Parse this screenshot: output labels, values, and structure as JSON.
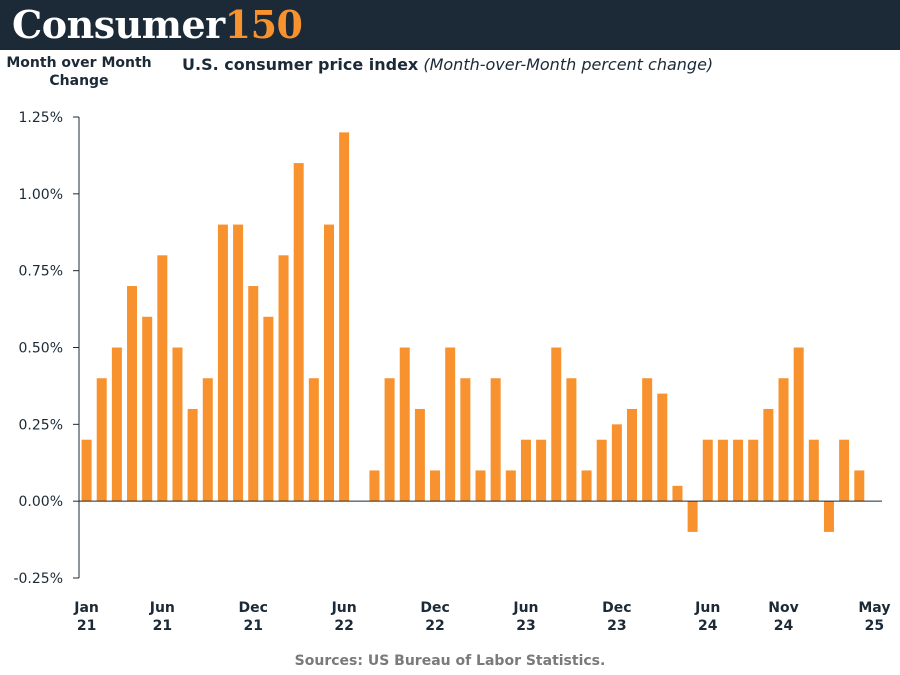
{
  "header": {
    "logo_word": "Consumer",
    "logo_number": "150",
    "background": "#1b2a36",
    "accent": "#f7922e"
  },
  "source": "Sources: US Bureau of Labor Statistics.",
  "chart_data": {
    "type": "bar",
    "title": "U.S. consumer price index",
    "subtitle": "(Month-over-Month percent change)",
    "ylabel": "Month over Month Change",
    "xlabel": "",
    "ylim": [
      -0.25,
      1.25
    ],
    "yticks": [
      1.25,
      1.0,
      0.75,
      0.5,
      0.25,
      0.0,
      -0.25
    ],
    "ytick_labels": [
      "1.25%",
      "1.00%",
      "0.75%",
      "0.50%",
      "0.25%",
      "0.00%",
      "-0.25%"
    ],
    "bar_color": "#f7922e",
    "grid": false,
    "categories": [
      "Jan 21",
      "Feb 21",
      "Mar 21",
      "Apr 21",
      "May 21",
      "Jun 21",
      "Jul 21",
      "Aug 21",
      "Sep 21",
      "Oct 21",
      "Nov 21",
      "Dec 21",
      "Jan 22",
      "Feb 22",
      "Mar 22",
      "Apr 22",
      "May 22",
      "Jun 22",
      "Jul 22",
      "Aug 22",
      "Sep 22",
      "Oct 22",
      "Nov 22",
      "Dec 22",
      "Jan 23",
      "Feb 23",
      "Mar 23",
      "Apr 23",
      "May 23",
      "Jun 23",
      "Jul 23",
      "Aug 23",
      "Sep 23",
      "Oct 23",
      "Nov 23",
      "Dec 23",
      "Jan 24",
      "Feb 24",
      "Mar 24",
      "Apr 24",
      "May 24",
      "Jun 24",
      "Jul 24",
      "Aug 24",
      "Sep 24",
      "Oct 24",
      "Nov 24",
      "Dec 24",
      "Jan 25",
      "Feb 25",
      "Mar 25",
      "Apr 25",
      "May 25"
    ],
    "values": [
      0.2,
      0.4,
      0.5,
      0.7,
      0.6,
      0.8,
      0.5,
      0.3,
      0.4,
      0.9,
      0.9,
      0.7,
      0.6,
      0.8,
      1.1,
      0.4,
      0.9,
      1.2,
      0.0,
      0.1,
      0.4,
      0.5,
      0.3,
      0.1,
      0.5,
      0.4,
      0.1,
      0.4,
      0.1,
      0.2,
      0.2,
      0.5,
      0.4,
      0.1,
      0.2,
      0.25,
      0.3,
      0.4,
      0.35,
      0.05,
      -0.1,
      0.2,
      0.2,
      0.2,
      0.2,
      0.3,
      0.4,
      0.5,
      0.2,
      -0.1,
      0.2,
      0.1,
      0.0
    ],
    "xtick_labels": [
      {
        "index": 0,
        "line1": "Jan",
        "line2": "21"
      },
      {
        "index": 5,
        "line1": "Jun",
        "line2": "21"
      },
      {
        "index": 11,
        "line1": "Dec",
        "line2": "21"
      },
      {
        "index": 17,
        "line1": "Jun",
        "line2": "22"
      },
      {
        "index": 23,
        "line1": "Dec",
        "line2": "22"
      },
      {
        "index": 29,
        "line1": "Jun",
        "line2": "23"
      },
      {
        "index": 35,
        "line1": "Dec",
        "line2": "23"
      },
      {
        "index": 41,
        "line1": "Jun",
        "line2": "24"
      },
      {
        "index": 46,
        "line1": "Nov",
        "line2": "24"
      },
      {
        "index": 52,
        "line1": "May",
        "line2": "25"
      }
    ]
  }
}
